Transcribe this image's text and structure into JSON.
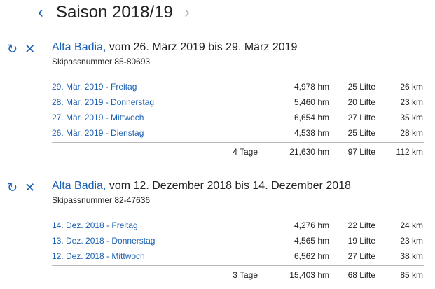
{
  "header": {
    "prev_icon": "‹",
    "next_icon": "›",
    "title": "Saison 2018/19"
  },
  "trips": [
    {
      "resort": "Alta Badia,",
      "dates": "vom 26. März 2019 bis 29. März 2019",
      "skipass": "Skipassnummer 85-80693",
      "days": [
        {
          "date": "29. Mär. 2019 - Freitag",
          "hm": "4,978 hm",
          "lifts": "25 Lifte",
          "km": "26 km"
        },
        {
          "date": "28. Mär. 2019 - Donnerstag",
          "hm": "5,460 hm",
          "lifts": "20 Lifte",
          "km": "23 km"
        },
        {
          "date": "27. Mär. 2019 - Mittwoch",
          "hm": "6,654 hm",
          "lifts": "27 Lifte",
          "km": "35 km"
        },
        {
          "date": "26. Mär. 2019 - Dienstag",
          "hm": "4,538 hm",
          "lifts": "25 Lifte",
          "km": "28 km"
        }
      ],
      "total": {
        "days": "4 Tage",
        "hm": "21,630 hm",
        "lifts": "97 Lifte",
        "km": "112 km"
      }
    },
    {
      "resort": "Alta Badia,",
      "dates": "vom 12. Dezember 2018 bis 14. Dezember 2018",
      "skipass": "Skipassnummer 82-47636",
      "days": [
        {
          "date": "14. Dez. 2018 - Freitag",
          "hm": "4,276 hm",
          "lifts": "22 Lifte",
          "km": "24 km"
        },
        {
          "date": "13. Dez. 2018 - Donnerstag",
          "hm": "4,565 hm",
          "lifts": "19 Lifte",
          "km": "23 km"
        },
        {
          "date": "12. Dez. 2018 - Mittwoch",
          "hm": "6,562 hm",
          "lifts": "27 Lifte",
          "km": "38 km"
        }
      ],
      "total": {
        "days": "3 Tage",
        "hm": "15,403 hm",
        "lifts": "68 Lifte",
        "km": "85 km"
      }
    }
  ],
  "icons": {
    "refresh": "↻",
    "close": "✕"
  },
  "colors": {
    "accent": "#1a5fb4",
    "text": "#222222",
    "disabled": "#bbbbbb",
    "divider": "#b8b8b8"
  }
}
